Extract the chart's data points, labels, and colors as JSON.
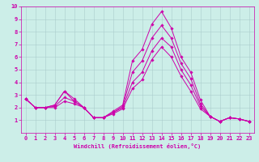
{
  "xlabel": "Windchill (Refroidissement éolien,°C)",
  "background_color": "#cceee8",
  "grid_color": "#aacccc",
  "line_color": "#cc00aa",
  "xlim": [
    -0.5,
    23.5
  ],
  "ylim": [
    0,
    10
  ],
  "xticks": [
    0,
    1,
    2,
    3,
    4,
    5,
    6,
    7,
    8,
    9,
    10,
    11,
    12,
    13,
    14,
    15,
    16,
    17,
    18,
    19,
    20,
    21,
    22,
    23
  ],
  "yticks": [
    1,
    2,
    3,
    4,
    5,
    6,
    7,
    8,
    9,
    10
  ],
  "curves": [
    [
      2.7,
      2.0,
      2.0,
      2.2,
      3.3,
      2.7,
      2.0,
      1.2,
      1.2,
      1.7,
      2.2,
      5.7,
      6.6,
      8.6,
      9.6,
      8.3,
      6.0,
      4.8,
      2.6,
      1.3,
      0.9,
      1.2,
      1.1,
      0.9
    ],
    [
      2.7,
      2.0,
      2.0,
      2.2,
      3.3,
      2.5,
      2.0,
      1.2,
      1.2,
      1.6,
      2.1,
      4.8,
      5.7,
      7.5,
      8.5,
      7.5,
      5.5,
      4.3,
      2.3,
      1.3,
      0.9,
      1.2,
      1.1,
      0.9
    ],
    [
      2.7,
      2.0,
      2.0,
      2.1,
      2.8,
      2.5,
      2.0,
      1.2,
      1.2,
      1.6,
      2.0,
      4.0,
      4.8,
      6.5,
      7.5,
      6.8,
      5.0,
      3.8,
      2.1,
      1.3,
      0.9,
      1.2,
      1.1,
      0.9
    ],
    [
      2.7,
      2.0,
      2.0,
      2.0,
      2.5,
      2.3,
      2.0,
      1.2,
      1.2,
      1.5,
      1.9,
      3.5,
      4.2,
      5.8,
      6.8,
      6.0,
      4.5,
      3.3,
      1.9,
      1.3,
      0.9,
      1.2,
      1.1,
      0.9
    ]
  ],
  "tick_fontsize": 5,
  "xlabel_fontsize": 5,
  "linewidth": 0.7,
  "markersize": 1.8
}
